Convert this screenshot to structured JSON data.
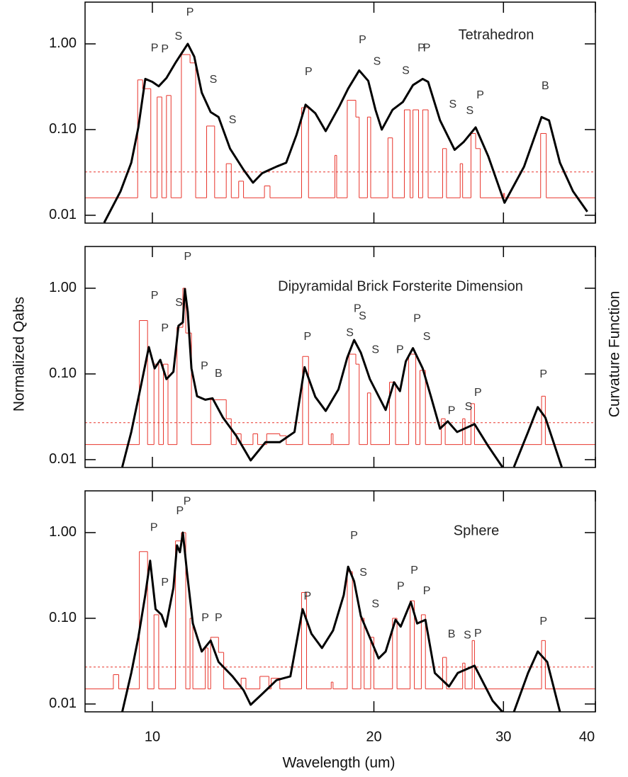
{
  "figure": {
    "y_label": "Normalized Qabs",
    "y2_label": "Curvature Function",
    "x_label": "Wavelength (um)"
  },
  "chart_data": [
    {
      "type": "line",
      "title": "Tetrahedron",
      "xscale": "log",
      "yscale": "log",
      "xlim": [
        8.1,
        40
      ],
      "ylim": [
        0.0081,
        3.07
      ],
      "xticks": [
        10,
        20,
        30,
        40
      ],
      "yticks": [
        {
          "value": 0.01,
          "label": "0.01"
        },
        {
          "value": 0.1,
          "label": "0.10"
        },
        {
          "value": 1,
          "label": "1.00"
        }
      ],
      "threshold_line": {
        "value": 0.032,
        "color": "#e8352c",
        "dashed": true
      },
      "series": [
        {
          "color": "#000000",
          "line_width": 3,
          "step": false,
          "x": [
            8.6,
            9.05,
            9.36,
            9.57,
            9.78,
            10,
            10.2,
            10.45,
            10.76,
            11.17,
            11.4,
            11.67,
            12.0,
            12.3,
            12.75,
            13.3,
            13.7,
            14.1,
            14.75,
            15.2,
            15.7,
            16.15,
            16.65,
            17.2,
            17.95,
            18.45,
            19.1,
            19.65,
            20.1,
            20.5,
            21.2,
            21.9,
            22.6,
            23.3,
            23.7,
            24.6,
            25.75,
            26.5,
            27.5,
            28.6,
            30.1,
            32.0,
            33.8,
            34.6,
            35.8,
            37.3,
            39.0
          ],
          "values": [
            0.0082,
            0.019,
            0.041,
            0.106,
            0.39,
            0.36,
            0.32,
            0.4,
            0.61,
            1.0,
            0.71,
            0.27,
            0.16,
            0.14,
            0.06,
            0.034,
            0.024,
            0.031,
            0.037,
            0.041,
            0.087,
            0.195,
            0.155,
            0.096,
            0.187,
            0.3,
            0.49,
            0.37,
            0.17,
            0.1,
            0.17,
            0.21,
            0.33,
            0.39,
            0.36,
            0.128,
            0.058,
            0.072,
            0.106,
            0.049,
            0.014,
            0.037,
            0.14,
            0.128,
            0.041,
            0.019,
            0.011
          ]
        },
        {
          "color": "#e8352c",
          "line_width": 1,
          "step": true,
          "x": [
            8.1,
            9.55,
            9.7,
            9.95,
            10.15,
            10.3,
            10.45,
            10.6,
            10.95,
            11.25,
            11.45,
            11.85,
            12.15,
            12.6,
            12.8,
            13.1,
            13.3,
            14.2,
            14.45,
            15.95,
            16.3,
            17.7,
            17.8,
            18.4,
            18.9,
            19.1,
            19.6,
            19.8,
            20.9,
            21.2,
            22.0,
            22.4,
            22.6,
            23.0,
            23.3,
            23.7,
            24.8,
            25.1,
            26.2,
            26.4,
            27.1,
            27.5,
            27.9,
            30.0,
            30.1,
            33.7,
            34.3,
            40
          ],
          "values": [
            0.016,
            0.38,
            0.3,
            0.016,
            0.24,
            0.016,
            0.25,
            0.016,
            0.75,
            0.6,
            0.016,
            0.11,
            0.016,
            0.04,
            0.016,
            0.025,
            0.016,
            0.022,
            0.016,
            0.18,
            0.016,
            0.05,
            0.016,
            0.22,
            0.14,
            0.016,
            0.14,
            0.016,
            0.08,
            0.016,
            0.17,
            0.016,
            0.17,
            0.016,
            0.17,
            0.016,
            0.06,
            0.016,
            0.04,
            0.016,
            0.09,
            0.06,
            0.016,
            0.018,
            0.016,
            0.09,
            0.016,
            0.016
          ]
        }
      ],
      "annotations": [
        {
          "text": "P",
          "x": 10.07,
          "y": 0.89
        },
        {
          "text": "P",
          "x": 10.4,
          "y": 0.86
        },
        {
          "text": "S",
          "x": 10.85,
          "y": 1.21
        },
        {
          "text": "P",
          "x": 11.25,
          "y": 2.31
        },
        {
          "text": "S",
          "x": 12.1,
          "y": 0.38
        },
        {
          "text": "S",
          "x": 12.85,
          "y": 0.128
        },
        {
          "text": "P",
          "x": 16.3,
          "y": 0.47
        },
        {
          "text": "P",
          "x": 19.3,
          "y": 1.1
        },
        {
          "text": "S",
          "x": 20.2,
          "y": 0.62
        },
        {
          "text": "S",
          "x": 22.1,
          "y": 0.48
        },
        {
          "text": "P",
          "x": 23.2,
          "y": 0.89
        },
        {
          "text": "P",
          "x": 23.6,
          "y": 0.89
        },
        {
          "text": "S",
          "x": 25.6,
          "y": 0.195
        },
        {
          "text": "S",
          "x": 27.0,
          "y": 0.165
        },
        {
          "text": "P",
          "x": 27.9,
          "y": 0.25
        },
        {
          "text": "B",
          "x": 34.2,
          "y": 0.32
        }
      ]
    },
    {
      "type": "line",
      "title": "Dipyramidal Brick Forsterite Dimension",
      "xscale": "log",
      "yscale": "log",
      "xlim": [
        8.1,
        40
      ],
      "ylim": [
        0.0081,
        3.07
      ],
      "xticks": [
        10,
        20,
        30,
        40
      ],
      "yticks": [
        {
          "value": 0.01,
          "label": "0.01"
        },
        {
          "value": 0.1,
          "label": "0.10"
        },
        {
          "value": 1,
          "label": "1.00"
        }
      ],
      "threshold_line": {
        "value": 0.027,
        "color": "#e8352c",
        "dashed": true
      },
      "series": [
        {
          "color": "#000000",
          "line_width": 3,
          "step": false,
          "x": [
            9.1,
            9.36,
            9.67,
            9.89,
            10.07,
            10.25,
            10.45,
            10.68,
            10.85,
            11.0,
            11.07,
            11.17,
            11.3,
            11.5,
            11.8,
            12.07,
            12.47,
            13.0,
            13.6,
            14.25,
            14.9,
            15.6,
            16.1,
            16.65,
            17.2,
            17.9,
            18.4,
            18.8,
            19.2,
            19.75,
            20.75,
            21.3,
            21.7,
            22.1,
            22.6,
            23.3,
            23.9,
            24.6,
            25.2,
            25.95,
            27.4,
            28.6,
            29.9,
            30.5,
            31.0,
            32.4,
            33.4,
            34.2,
            36.0
          ],
          "values": [
            0.0082,
            0.021,
            0.08,
            0.206,
            0.116,
            0.146,
            0.087,
            0.106,
            0.365,
            0.4,
            0.98,
            0.53,
            0.116,
            0.055,
            0.05,
            0.052,
            0.031,
            0.019,
            0.0098,
            0.016,
            0.016,
            0.021,
            0.12,
            0.054,
            0.037,
            0.066,
            0.155,
            0.249,
            0.177,
            0.087,
            0.038,
            0.08,
            0.063,
            0.14,
            0.2,
            0.116,
            0.055,
            0.023,
            0.028,
            0.021,
            0.026,
            0.0144,
            0.0082,
            null,
            0.0082,
            0.021,
            0.041,
            0.031,
            0.0082
          ]
        },
        {
          "color": "#e8352c",
          "line_width": 1,
          "step": true,
          "x": [
            8.1,
            9.6,
            9.85,
            10.05,
            10.2,
            10.35,
            10.5,
            10.8,
            11.0,
            11.1,
            11.3,
            12.0,
            12.6,
            12.8,
            13.0,
            13.2,
            13.7,
            13.9,
            14.3,
            14.9,
            15.2,
            16.0,
            16.3,
            17.5,
            17.6,
            18.5,
            18.9,
            19.1,
            19.6,
            19.8,
            21.0,
            21.4,
            22.3,
            22.8,
            23.1,
            23.5,
            24.7,
            25.0,
            26.4,
            26.6,
            27.1,
            27.4,
            33.8,
            34.2,
            40
          ],
          "values": [
            0.015,
            0.42,
            0.015,
            0.13,
            0.015,
            0.13,
            0.015,
            0.35,
            1.0,
            0.3,
            0.015,
            0.05,
            0.03,
            0.015,
            0.02,
            0.015,
            0.02,
            0.015,
            0.02,
            0.019,
            0.015,
            0.16,
            0.015,
            0.02,
            0.015,
            0.17,
            0.13,
            0.015,
            0.06,
            0.015,
            0.08,
            0.015,
            0.17,
            0.015,
            0.11,
            0.015,
            0.03,
            0.015,
            0.03,
            0.015,
            0.045,
            0.015,
            0.055,
            0.015,
            0.015
          ]
        }
      ],
      "annotations": [
        {
          "text": "P",
          "x": 10.07,
          "y": 0.81
        },
        {
          "text": "P",
          "x": 10.4,
          "y": 0.34
        },
        {
          "text": "S",
          "x": 10.87,
          "y": 0.67
        },
        {
          "text": "P",
          "x": 11.17,
          "y": 2.31
        },
        {
          "text": "P",
          "x": 11.77,
          "y": 0.123
        },
        {
          "text": "B",
          "x": 12.3,
          "y": 0.1
        },
        {
          "text": "P",
          "x": 16.25,
          "y": 0.27
        },
        {
          "text": "S",
          "x": 18.55,
          "y": 0.3
        },
        {
          "text": "P",
          "x": 19.0,
          "y": 0.57
        },
        {
          "text": "S",
          "x": 19.3,
          "y": 0.47
        },
        {
          "text": "S",
          "x": 20.1,
          "y": 0.19
        },
        {
          "text": "P",
          "x": 21.7,
          "y": 0.19
        },
        {
          "text": "P",
          "x": 22.9,
          "y": 0.44
        },
        {
          "text": "S",
          "x": 23.6,
          "y": 0.27
        },
        {
          "text": "P",
          "x": 25.5,
          "y": 0.037
        },
        {
          "text": "S",
          "x": 26.9,
          "y": 0.041
        },
        {
          "text": "P",
          "x": 27.7,
          "y": 0.06
        },
        {
          "text": "P",
          "x": 34.0,
          "y": 0.098
        }
      ]
    },
    {
      "type": "line",
      "title": "Sphere",
      "xscale": "log",
      "yscale": "log",
      "xlim": [
        8.1,
        40
      ],
      "ylim": [
        0.0081,
        3.07
      ],
      "xticks": [
        10,
        20,
        30,
        40
      ],
      "yticks": [
        {
          "value": 0.01,
          "label": "0.01"
        },
        {
          "value": 0.1,
          "label": "0.10"
        },
        {
          "value": 1,
          "label": "1.00"
        }
      ],
      "threshold_line": {
        "value": 0.027,
        "color": "#e8352c",
        "dashed": true
      },
      "series": [
        {
          "color": "#000000",
          "line_width": 3,
          "step": false,
          "x": [
            9.1,
            9.36,
            9.57,
            9.78,
            9.93,
            10.1,
            10.29,
            10.43,
            10.68,
            10.8,
            10.9,
            11.0,
            11.15,
            11.35,
            11.67,
            12.0,
            12.3,
            12.85,
            13.3,
            13.6,
            14.1,
            14.75,
            15.4,
            16.0,
            16.45,
            17.0,
            17.6,
            18.2,
            18.45,
            18.8,
            19.2,
            19.65,
            20.3,
            20.75,
            21.4,
            21.75,
            22.45,
            22.9,
            23.5,
            24.2,
            25.3,
            26.0,
            27.4,
            29.0,
            29.9,
            30.5,
            31.0,
            32.4,
            33.4,
            34.4,
            35.8
          ],
          "values": [
            0.0081,
            0.023,
            0.06,
            0.187,
            0.47,
            0.128,
            0.11,
            0.08,
            0.227,
            0.71,
            0.59,
            1.0,
            0.33,
            0.087,
            0.041,
            0.055,
            0.031,
            0.021,
            0.0145,
            0.0098,
            0.0131,
            0.019,
            0.021,
            0.128,
            0.066,
            0.045,
            0.072,
            0.187,
            0.4,
            0.27,
            0.106,
            0.066,
            0.034,
            0.041,
            0.096,
            0.08,
            0.155,
            0.087,
            0.096,
            0.023,
            0.016,
            0.023,
            0.028,
            0.0109,
            0.0081,
            null,
            0.0081,
            0.023,
            0.041,
            0.031,
            0.0081
          ]
        },
        {
          "color": "#e8352c",
          "line_width": 1,
          "step": true,
          "x": [
            8.1,
            8.85,
            9.0,
            9.6,
            9.85,
            10.05,
            10.2,
            10.75,
            10.95,
            11.1,
            11.25,
            11.35,
            11.8,
            11.9,
            12.0,
            12.3,
            12.5,
            13.2,
            13.4,
            14.0,
            14.4,
            14.5,
            14.9,
            15.95,
            16.2,
            17.5,
            17.6,
            18.4,
            18.7,
            19.2,
            19.4,
            19.8,
            20.0,
            21.2,
            21.5,
            22.4,
            22.7,
            23.2,
            23.5,
            24.8,
            25.1,
            26.4,
            26.6,
            27.2,
            27.4,
            33.8,
            34.2,
            40
          ],
          "values": [
            0.015,
            0.022,
            0.015,
            0.6,
            0.015,
            0.11,
            0.015,
            0.8,
            1.0,
            0.015,
            0.1,
            0.015,
            0.045,
            0.015,
            0.06,
            0.04,
            0.015,
            0.02,
            0.015,
            0.021,
            0.015,
            0.02,
            0.015,
            0.2,
            0.015,
            0.018,
            0.015,
            0.35,
            0.015,
            0.1,
            0.015,
            0.06,
            0.015,
            0.1,
            0.015,
            0.16,
            0.015,
            0.11,
            0.015,
            0.035,
            0.015,
            0.03,
            0.015,
            0.055,
            0.015,
            0.055,
            0.015,
            0.015
          ]
        }
      ],
      "annotations": [
        {
          "text": "P",
          "x": 10.05,
          "y": 1.14
        },
        {
          "text": "P",
          "x": 10.4,
          "y": 0.26
        },
        {
          "text": "P",
          "x": 10.9,
          "y": 1.77
        },
        {
          "text": "P",
          "x": 11.15,
          "y": 2.3
        },
        {
          "text": "P",
          "x": 11.8,
          "y": 0.1
        },
        {
          "text": "P",
          "x": 12.3,
          "y": 0.1
        },
        {
          "text": "P",
          "x": 16.25,
          "y": 0.18
        },
        {
          "text": "P",
          "x": 18.8,
          "y": 0.91
        },
        {
          "text": "S",
          "x": 19.35,
          "y": 0.34
        },
        {
          "text": "S",
          "x": 20.1,
          "y": 0.146
        },
        {
          "text": "P",
          "x": 21.75,
          "y": 0.235
        },
        {
          "text": "P",
          "x": 22.7,
          "y": 0.36
        },
        {
          "text": "P",
          "x": 23.6,
          "y": 0.206
        },
        {
          "text": "B",
          "x": 25.5,
          "y": 0.065
        },
        {
          "text": "S",
          "x": 26.8,
          "y": 0.063
        },
        {
          "text": "P",
          "x": 27.7,
          "y": 0.066
        },
        {
          "text": "P",
          "x": 34.0,
          "y": 0.091
        }
      ]
    }
  ]
}
